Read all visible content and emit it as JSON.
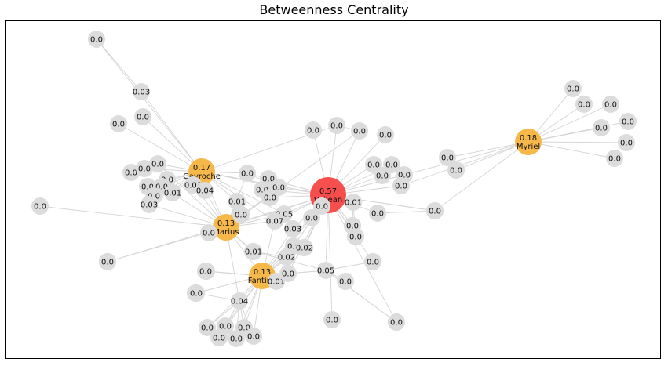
{
  "title": "Betweenness Centrality",
  "colors": {
    "top1": "#f74444",
    "top2to4": "#f7b84a",
    "other": "#dcdcdc",
    "edge": "#d4d4d4"
  },
  "nodes": [
    {
      "id": "valjean",
      "label": "Valjean",
      "value": "0.57",
      "group": "top1"
    },
    {
      "id": "myriel",
      "label": "Myriel",
      "value": "0.18",
      "group": "top"
    },
    {
      "id": "gavroche",
      "label": "Gavroche",
      "value": "0.17",
      "group": "top"
    },
    {
      "id": "marius",
      "label": "Marius",
      "value": "0.13",
      "group": "top"
    },
    {
      "id": "fantine",
      "label": "Fantine",
      "value": "0.13",
      "group": "top"
    },
    {
      "id": "m1",
      "value": "0.0"
    },
    {
      "id": "m2",
      "value": "0.0"
    },
    {
      "id": "m3",
      "value": "0.0"
    },
    {
      "id": "m4",
      "value": "0.0"
    },
    {
      "id": "m5",
      "value": "0.0"
    },
    {
      "id": "m6",
      "value": "0.0"
    },
    {
      "id": "m7",
      "value": "0.0"
    },
    {
      "id": "m8",
      "value": "0.0"
    },
    {
      "id": "m9",
      "value": "0.0"
    },
    {
      "id": "g1",
      "value": "0.0"
    },
    {
      "id": "g2",
      "value": "0.03"
    },
    {
      "id": "g3",
      "value": "0.0"
    },
    {
      "id": "g4",
      "value": "0.0"
    },
    {
      "id": "g5",
      "value": "0.0"
    },
    {
      "id": "g6",
      "value": "0.0"
    },
    {
      "id": "g7",
      "value": "0.0"
    },
    {
      "id": "g8",
      "value": "0.0"
    },
    {
      "id": "g9",
      "value": "0.0"
    },
    {
      "id": "g10",
      "value": "0.0"
    },
    {
      "id": "g11",
      "value": "0.0"
    },
    {
      "id": "g12",
      "value": "0.03"
    },
    {
      "id": "g13",
      "value": "0.01"
    },
    {
      "id": "g14",
      "value": "0.04"
    },
    {
      "id": "g15",
      "value": "0.03"
    },
    {
      "id": "g16",
      "value": "0.0"
    },
    {
      "id": "g17",
      "value": "0.0"
    },
    {
      "id": "c1",
      "value": "0.0"
    },
    {
      "id": "c2",
      "value": "0.0"
    },
    {
      "id": "c3",
      "value": "0.0"
    },
    {
      "id": "c4",
      "value": "0.0"
    },
    {
      "id": "c5",
      "value": "0.0"
    },
    {
      "id": "c6",
      "value": "0.0"
    },
    {
      "id": "c7",
      "value": "0.0"
    },
    {
      "id": "c8",
      "value": "0.01"
    },
    {
      "id": "c9",
      "value": "0.0"
    },
    {
      "id": "c10",
      "value": "0.05"
    },
    {
      "id": "c11",
      "value": "0.07"
    },
    {
      "id": "c12",
      "value": "0.0"
    },
    {
      "id": "c13",
      "value": "0.03"
    },
    {
      "id": "c14",
      "value": "0.0"
    },
    {
      "id": "c15",
      "value": "0.02"
    },
    {
      "id": "c16",
      "value": "0.0"
    },
    {
      "id": "c17",
      "value": "0.02"
    },
    {
      "id": "c18",
      "value": "0.01"
    },
    {
      "id": "c19",
      "value": "0.0"
    },
    {
      "id": "c20",
      "value": "0.05"
    },
    {
      "id": "c21",
      "value": "0.0"
    },
    {
      "id": "c22",
      "value": "0.0"
    },
    {
      "id": "v1",
      "value": "0.0"
    },
    {
      "id": "v2",
      "value": "0.0"
    },
    {
      "id": "v3",
      "value": "0.0"
    },
    {
      "id": "v4",
      "value": "0.0"
    },
    {
      "id": "v5",
      "value": "0.0"
    },
    {
      "id": "v6",
      "value": "0.0"
    },
    {
      "id": "v7",
      "value": "0.0"
    },
    {
      "id": "v8",
      "value": "0.0"
    },
    {
      "id": "v9",
      "value": "0.0"
    },
    {
      "id": "v10",
      "value": "0.0"
    },
    {
      "id": "v11",
      "value": "0.0"
    },
    {
      "id": "v12",
      "value": "0.01"
    },
    {
      "id": "v13",
      "value": "0.0"
    },
    {
      "id": "v14",
      "value": "0.0"
    },
    {
      "id": "v15",
      "value": "0.0"
    },
    {
      "id": "v16",
      "value": "0.0"
    },
    {
      "id": "v17",
      "value": "0.0"
    },
    {
      "id": "v18",
      "value": "0.0"
    },
    {
      "id": "f1",
      "value": "0.0"
    },
    {
      "id": "f2",
      "value": "0.0"
    },
    {
      "id": "f3",
      "value": "0.0"
    },
    {
      "id": "f4",
      "value": "0.04"
    },
    {
      "id": "f5",
      "value": "0.0"
    },
    {
      "id": "f6",
      "value": "0.0"
    },
    {
      "id": "f7",
      "value": "0.0"
    },
    {
      "id": "f8",
      "value": "0.0"
    },
    {
      "id": "f9",
      "value": "0.0"
    },
    {
      "id": "f10",
      "value": "0.0"
    },
    {
      "id": "f11",
      "value": "0.0"
    },
    {
      "id": "f12",
      "value": "0.01"
    },
    {
      "id": "f13",
      "value": "0.0"
    },
    {
      "id": "x1",
      "value": "0.0"
    },
    {
      "id": "x2",
      "value": "0.0"
    },
    {
      "id": "x3",
      "value": "0.0"
    }
  ],
  "edges": [
    [
      "myriel",
      "valjean"
    ],
    [
      "myriel",
      "m1"
    ],
    [
      "myriel",
      "m2"
    ],
    [
      "myriel",
      "m3"
    ],
    [
      "myriel",
      "m4"
    ],
    [
      "myriel",
      "m5"
    ],
    [
      "myriel",
      "m6"
    ],
    [
      "myriel",
      "m7"
    ],
    [
      "myriel",
      "m8"
    ],
    [
      "myriel",
      "m9"
    ],
    [
      "gavroche",
      "g1"
    ],
    [
      "gavroche",
      "g2"
    ],
    [
      "g1",
      "g2"
    ],
    [
      "gavroche",
      "g4"
    ],
    [
      "gavroche",
      "g5"
    ],
    [
      "gavroche",
      "g6"
    ],
    [
      "gavroche",
      "g7"
    ],
    [
      "gavroche",
      "g8"
    ],
    [
      "gavroche",
      "g9"
    ],
    [
      "gavroche",
      "g10"
    ],
    [
      "gavroche",
      "g11"
    ],
    [
      "gavroche",
      "g12"
    ],
    [
      "gavroche",
      "g13"
    ],
    [
      "gavroche",
      "g14"
    ],
    [
      "gavroche",
      "g15"
    ],
    [
      "gavroche",
      "marius"
    ],
    [
      "gavroche",
      "valjean"
    ],
    [
      "gavroche",
      "c4"
    ],
    [
      "gavroche",
      "c6"
    ],
    [
      "gavroche",
      "c8"
    ],
    [
      "gavroche",
      "c10"
    ],
    [
      "gavroche",
      "c11"
    ],
    [
      "gavroche",
      "c2"
    ],
    [
      "g3",
      "gavroche"
    ],
    [
      "marius",
      "valjean"
    ],
    [
      "marius",
      "g16"
    ],
    [
      "marius",
      "g17"
    ],
    [
      "marius",
      "x1"
    ],
    [
      "marius",
      "c8"
    ],
    [
      "marius",
      "c9"
    ],
    [
      "marius",
      "c10"
    ],
    [
      "marius",
      "c11"
    ],
    [
      "marius",
      "f12"
    ],
    [
      "marius",
      "f2"
    ],
    [
      "marius",
      "fantine"
    ],
    [
      "marius",
      "f4"
    ],
    [
      "marius",
      "c4"
    ],
    [
      "marius",
      "c6"
    ],
    [
      "marius",
      "g15"
    ],
    [
      "marius",
      "g12"
    ],
    [
      "marius",
      "g14"
    ],
    [
      "marius",
      "c3"
    ],
    [
      "marius",
      "g10"
    ],
    [
      "marius",
      "g7"
    ],
    [
      "valjean",
      "c1"
    ],
    [
      "valjean",
      "c2"
    ],
    [
      "valjean",
      "c3"
    ],
    [
      "valjean",
      "c4"
    ],
    [
      "valjean",
      "c5"
    ],
    [
      "valjean",
      "c6"
    ],
    [
      "valjean",
      "c7"
    ],
    [
      "valjean",
      "c10"
    ],
    [
      "valjean",
      "c11"
    ],
    [
      "valjean",
      "c12"
    ],
    [
      "valjean",
      "c13"
    ],
    [
      "valjean",
      "c14"
    ],
    [
      "valjean",
      "c15"
    ],
    [
      "valjean",
      "c16"
    ],
    [
      "valjean",
      "c17"
    ],
    [
      "valjean",
      "c19"
    ],
    [
      "valjean",
      "c20"
    ],
    [
      "valjean",
      "v1"
    ],
    [
      "valjean",
      "v2"
    ],
    [
      "valjean",
      "v3"
    ],
    [
      "valjean",
      "v4"
    ],
    [
      "valjean",
      "v5"
    ],
    [
      "valjean",
      "v6"
    ],
    [
      "valjean",
      "v7"
    ],
    [
      "valjean",
      "v8"
    ],
    [
      "valjean",
      "v9"
    ],
    [
      "valjean",
      "v10"
    ],
    [
      "valjean",
      "v11"
    ],
    [
      "valjean",
      "v12"
    ],
    [
      "valjean",
      "v13"
    ],
    [
      "valjean",
      "v14"
    ],
    [
      "valjean",
      "v15"
    ],
    [
      "valjean",
      "v16"
    ],
    [
      "valjean",
      "v18"
    ],
    [
      "valjean",
      "fantine"
    ],
    [
      "valjean",
      "x2"
    ],
    [
      "valjean",
      "x3"
    ],
    [
      "v12",
      "v13"
    ],
    [
      "v12",
      "v14"
    ],
    [
      "v9",
      "v10"
    ],
    [
      "v5",
      "v6"
    ],
    [
      "v6",
      "myriel"
    ],
    [
      "v10",
      "myriel"
    ],
    [
      "fantine",
      "c15"
    ],
    [
      "fantine",
      "c17"
    ],
    [
      "fantine",
      "c18"
    ],
    [
      "fantine",
      "c16"
    ],
    [
      "fantine",
      "c12"
    ],
    [
      "fantine",
      "f1"
    ],
    [
      "fantine",
      "f3"
    ],
    [
      "fantine",
      "f4"
    ],
    [
      "fantine",
      "f5"
    ],
    [
      "fantine",
      "f6"
    ],
    [
      "fantine",
      "f7"
    ],
    [
      "fantine",
      "f8"
    ],
    [
      "fantine",
      "f9"
    ],
    [
      "fantine",
      "f10"
    ],
    [
      "fantine",
      "f11"
    ],
    [
      "fantine",
      "f13"
    ],
    [
      "fantine",
      "c11"
    ],
    [
      "fantine",
      "c13"
    ],
    [
      "fantine",
      "c20"
    ],
    [
      "fantine",
      "c14"
    ],
    [
      "c20",
      "c21"
    ],
    [
      "c20",
      "v17"
    ],
    [
      "c20",
      "x3"
    ],
    [
      "c20",
      "c22"
    ],
    [
      "c20",
      "f12"
    ],
    [
      "c20",
      "c19"
    ],
    [
      "f4",
      "f5"
    ],
    [
      "f4",
      "f6"
    ],
    [
      "f4",
      "f7"
    ],
    [
      "f4",
      "f8"
    ],
    [
      "f4",
      "f9"
    ],
    [
      "f4",
      "f10"
    ],
    [
      "f4",
      "f11"
    ],
    [
      "c8",
      "c9"
    ],
    [
      "c10",
      "c11"
    ],
    [
      "c13",
      "c14"
    ],
    [
      "c15",
      "c16"
    ],
    [
      "c17",
      "c18"
    ],
    [
      "g13",
      "g15"
    ],
    [
      "g14",
      "g12"
    ],
    [
      "c4",
      "c6"
    ],
    [
      "c2",
      "c3"
    ],
    [
      "f12",
      "c15"
    ]
  ]
}
